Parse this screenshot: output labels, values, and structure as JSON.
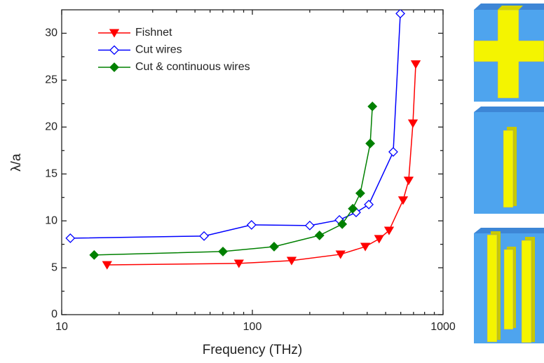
{
  "chart_data": {
    "type": "line",
    "xlabel": "Frequency (THz)",
    "ylabel": "λ/a",
    "xscale": "log",
    "xlim": [
      10,
      1000
    ],
    "xticks": [
      10,
      100,
      1000
    ],
    "ylim": [
      0,
      32.5
    ],
    "yticks": [
      0,
      5,
      10,
      15,
      20,
      25,
      30
    ],
    "legend": "upper left",
    "series": [
      {
        "name": "Fishnet",
        "color": "#ff0000",
        "marker": "triangle-down",
        "x": [
          17.3,
          85,
          160.6,
          290,
          391,
          462,
          521,
          617,
          660,
          695,
          719
        ],
        "values": [
          5.3,
          5.46,
          5.76,
          6.43,
          7.25,
          8.08,
          8.97,
          12.2,
          14.3,
          20.4,
          26.7
        ]
      },
      {
        "name": "Cut wires",
        "color": "#0000ff",
        "marker": "diamond-open",
        "x": [
          11.1,
          55.8,
          99,
          200,
          286,
          350,
          408,
          548,
          597
        ],
        "values": [
          8.15,
          8.38,
          9.57,
          9.5,
          10.1,
          10.9,
          11.74,
          17.35,
          32.1
        ]
      },
      {
        "name": "Cut & continuous wires",
        "color": "#008000",
        "marker": "diamond",
        "x": [
          14.8,
          70.1,
          130,
          225,
          296,
          336,
          368,
          415,
          426
        ],
        "values": [
          6.36,
          6.73,
          7.25,
          8.45,
          9.65,
          11.3,
          12.94,
          18.25,
          22.2
        ]
      }
    ]
  }
}
